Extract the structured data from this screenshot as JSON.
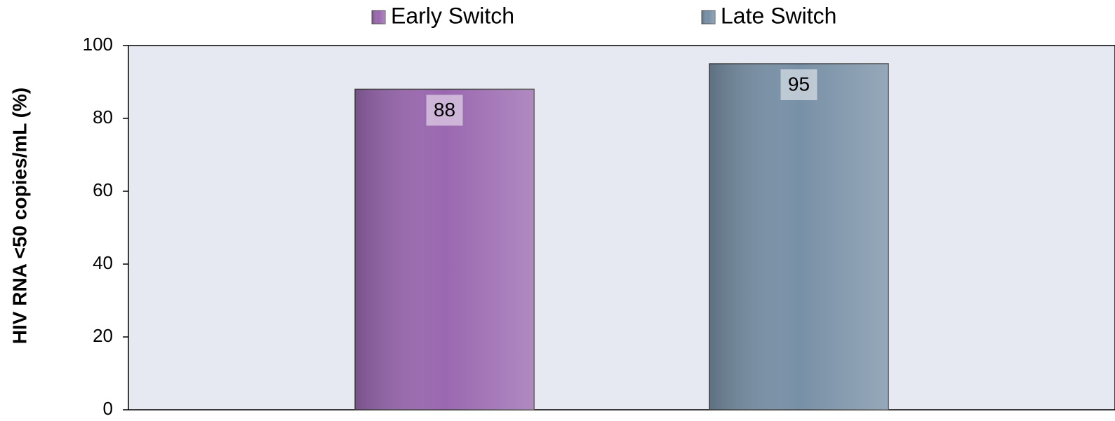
{
  "chart_data": {
    "type": "bar",
    "y_label": "HIV RNA <50 copies/mL (%)",
    "categories": [
      null
    ],
    "series": [
      {
        "name": "Early Switch",
        "color": "#9a68b0",
        "values": [
          88
        ]
      },
      {
        "name": "Late Switch",
        "color": "#7890a6",
        "values": [
          95
        ]
      }
    ],
    "ylim": [
      0,
      100
    ],
    "yticks": [
      0,
      20,
      40,
      60,
      80,
      100
    ],
    "grid": false,
    "legend": "top"
  }
}
